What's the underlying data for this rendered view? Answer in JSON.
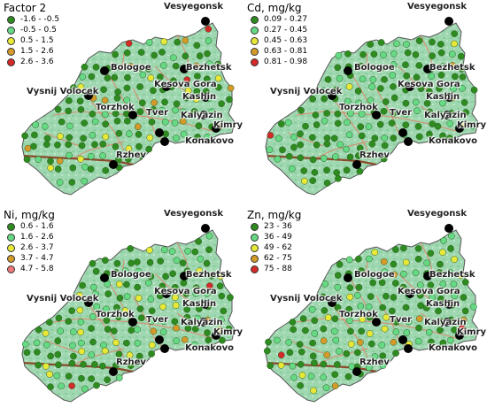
{
  "panels": [
    {
      "title": "Factor 2",
      "legend": [
        {
          "label": "-1.6 - -0.5",
          "color": "#2e8b1f"
        },
        {
          "label": "-0.5 - 0.5",
          "color": "#66d985"
        },
        {
          "label": "0.5 - 1.5",
          "color": "#e8e838"
        },
        {
          "label": "1.5 - 2.6",
          "color": "#d49a2a"
        },
        {
          "label": "2.6 - 3.6",
          "color": "#d42a2a"
        }
      ]
    },
    {
      "title": "Cd, mg/kg",
      "legend": [
        {
          "label": "0.09 - 0.27",
          "color": "#2e8b1f"
        },
        {
          "label": "0.27 - 0.45",
          "color": "#66d985"
        },
        {
          "label": "0.45 - 0.63",
          "color": "#e8e838"
        },
        {
          "label": "0.63 - 0.81",
          "color": "#d49a2a"
        },
        {
          "label": "0.81 - 0.98",
          "color": "#d42a2a"
        }
      ]
    },
    {
      "title": "Ni, mg/kg",
      "legend": [
        {
          "label": "0.6 - 1.6",
          "color": "#2e8b1f"
        },
        {
          "label": "1.6 - 2.6",
          "color": "#66d985"
        },
        {
          "label": "2.6 - 3.7",
          "color": "#e8e838"
        },
        {
          "label": "3.7 - 4.7",
          "color": "#d49a2a"
        },
        {
          "label": "4.7 - 5.8",
          "color": "#f07878"
        }
      ]
    },
    {
      "title": "Zn, mg/kg",
      "legend": [
        {
          "label": "23 - 36",
          "color": "#2e8b1f"
        },
        {
          "label": "36 - 49",
          "color": "#66d985"
        },
        {
          "label": "49 - 62",
          "color": "#e8e838"
        },
        {
          "label": "62 - 75",
          "color": "#d49a2a"
        },
        {
          "label": "75 - 88",
          "color": "#d42a2a"
        }
      ]
    }
  ],
  "cities": {
    "vesyegonsk": "Vesyegonsk",
    "bologoe": "Bologoe",
    "bezhetsk": "Bezhetsk",
    "vysnij_volocek": "Vysnij Volocek",
    "kesova_gora": "Kesova Gora",
    "kashin": "Kashin",
    "torzhok": "Torzhok",
    "tver": "Tver",
    "kalyazin": "Kalyazin",
    "kimry": "Kimry",
    "konakovo": "Konakovo",
    "rzhev": "Rzhev"
  },
  "map_colors": {
    "land": "#9fd8b0",
    "land_dark": "#7cc795",
    "roads": "#d98a6e",
    "highway": "#8b4a2b",
    "border": "#555555"
  },
  "dot_colors": {
    "class1": "#2e8b1f",
    "class2": "#66d985",
    "class3": "#e8e838",
    "class4": "#d49a2a",
    "class5": "#d42a2a",
    "city_marker": "#000000"
  }
}
